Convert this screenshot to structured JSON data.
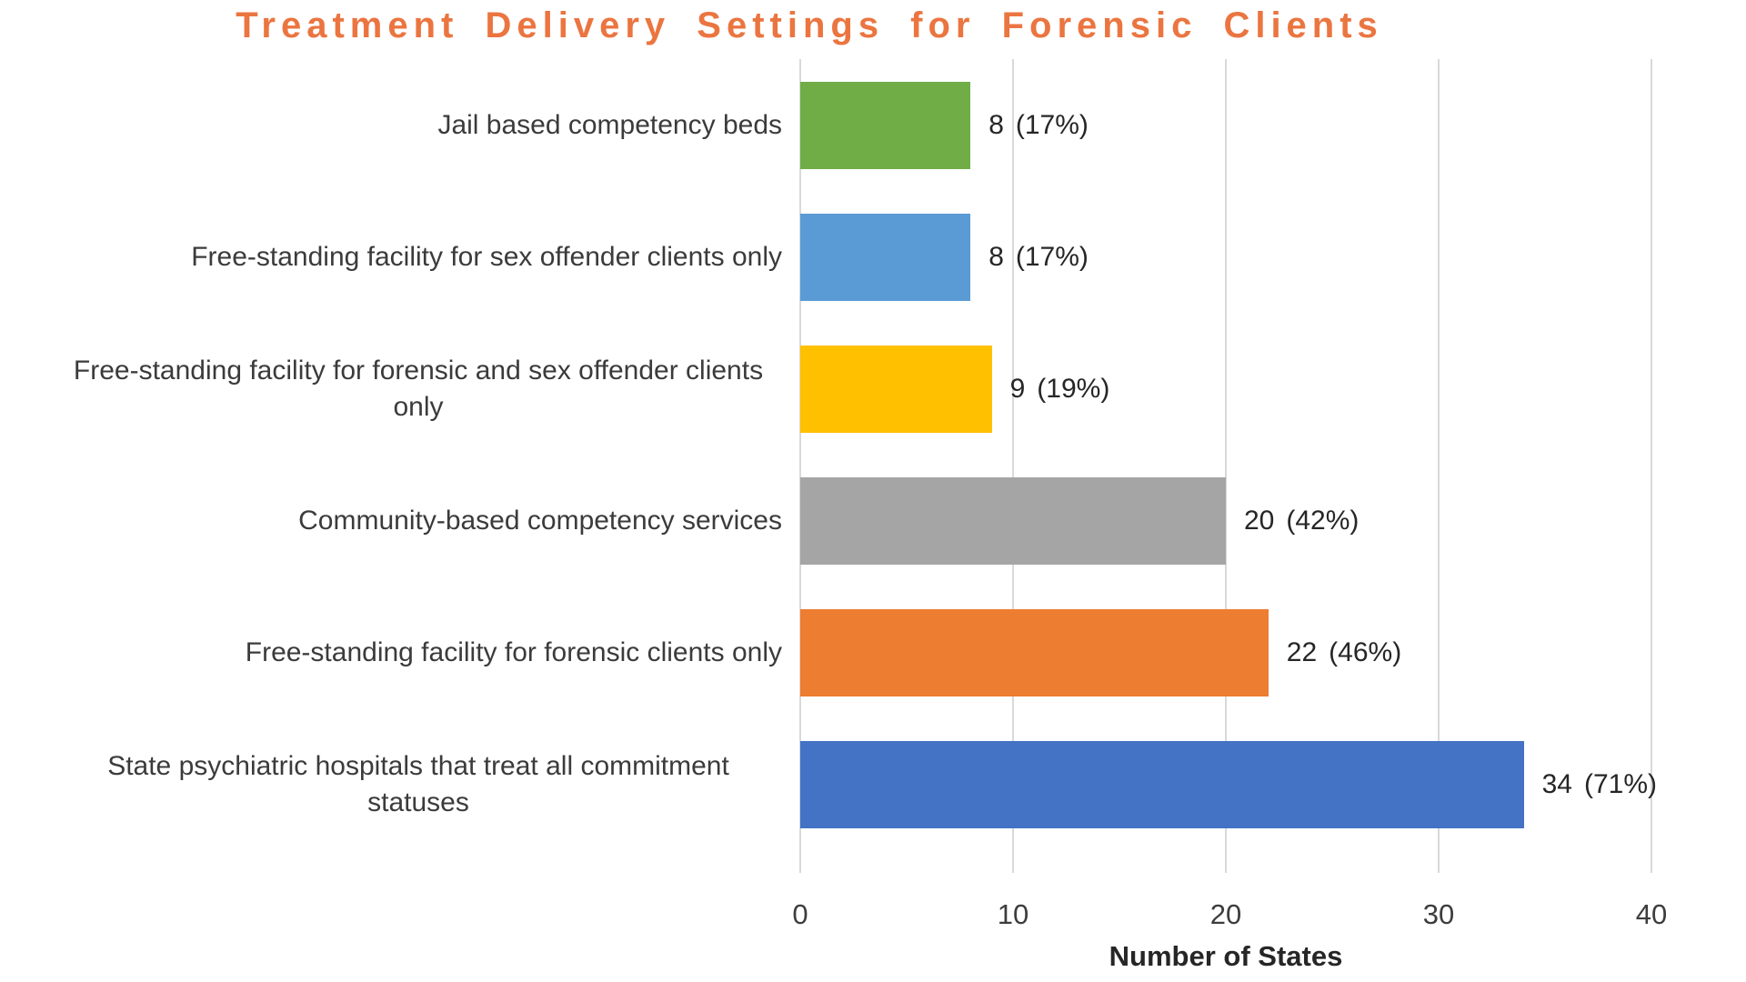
{
  "chart_data": {
    "type": "bar",
    "orientation": "horizontal",
    "title": "Treatment Delivery Settings for Forensic Clients",
    "xlabel": "Number of States",
    "xlim": [
      0,
      40
    ],
    "xticks": [
      "0",
      "10",
      "20",
      "30",
      "40"
    ],
    "grid": "vertical gridlines at major ticks",
    "legend": "none",
    "title_color": "#EB7540",
    "gridline_color": "#D9D9D9",
    "categories": [
      "Jail based competency beds",
      "Free-standing facility for sex offender clients only",
      "Free-standing facility for forensic and sex offender clients only",
      "Community-based competency services",
      "Free-standing facility for forensic clients only",
      "State psychiatric hospitals that treat all commitment statuses"
    ],
    "values": [
      8,
      8,
      9,
      20,
      22,
      34
    ],
    "bars": [
      {
        "category": "Jail based competency beds",
        "value": 8,
        "value_label": "8",
        "pct_label": "(17%)",
        "color": "#70AD47"
      },
      {
        "category": "Free-standing facility for sex offender clients only",
        "value": 8,
        "value_label": "8",
        "pct_label": "(17%)",
        "color": "#5B9BD5"
      },
      {
        "category": "Free-standing facility for forensic and sex offender clients only",
        "value": 9,
        "value_label": "9",
        "pct_label": "(19%)",
        "color": "#FFC000"
      },
      {
        "category": "Community-based competency services",
        "value": 20,
        "value_label": "20",
        "pct_label": "(42%)",
        "color": "#A5A5A5"
      },
      {
        "category": "Free-standing facility for forensic clients only",
        "value": 22,
        "value_label": "22",
        "pct_label": "(46%)",
        "color": "#ED7D31"
      },
      {
        "category": "State psychiatric hospitals that treat all commitment statuses",
        "value": 34,
        "value_label": "34",
        "pct_label": "(71%)",
        "color": "#4472C4"
      }
    ]
  }
}
